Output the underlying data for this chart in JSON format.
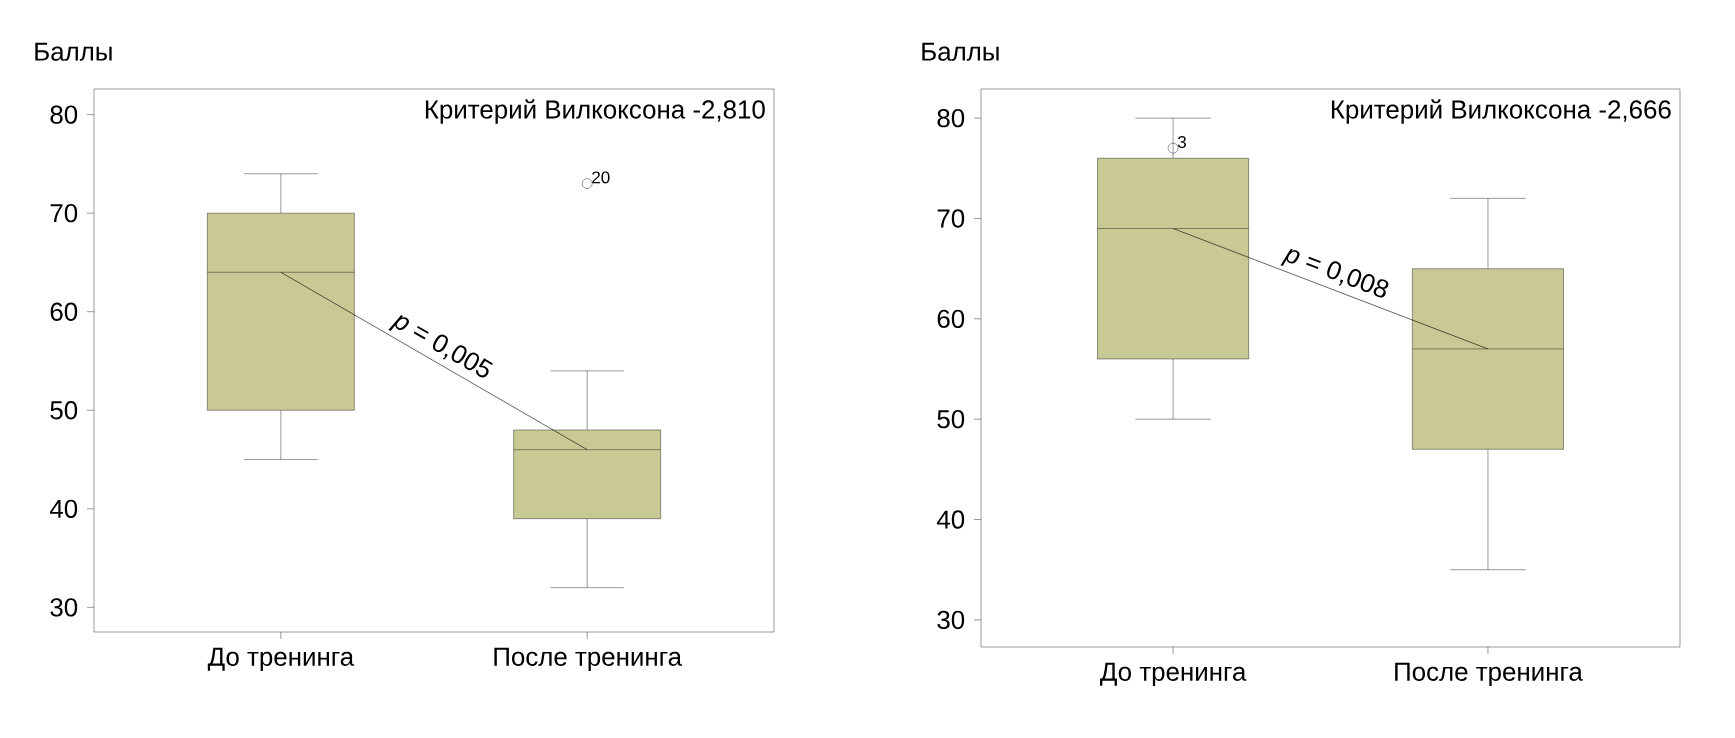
{
  "chart_data": [
    {
      "type": "box",
      "ylabel": "Баллы",
      "categories": [
        "До тренинга",
        "После тренинга"
      ],
      "ylim": [
        27.5,
        82.6
      ],
      "yticks": [
        30,
        40,
        50,
        60,
        70,
        80
      ],
      "series": [
        {
          "type": "line",
          "color": "#000000",
          "values": [
            64,
            46
          ]
        },
        {
          "color": "#c9c995",
          "boxes": [
            {
              "low": 45,
              "q1": 50,
              "median": 64,
              "q3": 70,
              "high": 74
            },
            {
              "low": 32,
              "q1": 39,
              "median": 46,
              "q3": 48,
              "high": 54,
              "outliers": [
                73
              ]
            }
          ]
        }
      ],
      "annotations": [
        "Критерий Вилкоксона -2,810",
        "*p* = 0,005",
        "20"
      ]
    },
    {
      "type": "box",
      "ylabel": "Баллы",
      "categories": [
        "До тренинга",
        "После тренинга"
      ],
      "ylim": [
        27.3,
        82.9
      ],
      "yticks": [
        30,
        40,
        50,
        60,
        70,
        80
      ],
      "series": [
        {
          "type": "line",
          "color": "#000000",
          "values": [
            69,
            57
          ]
        },
        {
          "color": "#c9c995",
          "boxes": [
            {
              "low": 50,
              "q1": 56,
              "median": 69,
              "q3": 76,
              "high": 80,
              "outliers": [
                77
              ]
            },
            {
              "low": 35,
              "q1": 47,
              "median": 57,
              "q3": 65,
              "high": 72
            }
          ]
        }
      ],
      "annotations": [
        "Критерий Вилкоксона -2,666",
        "*p* = 0,008",
        "3"
      ]
    }
  ]
}
